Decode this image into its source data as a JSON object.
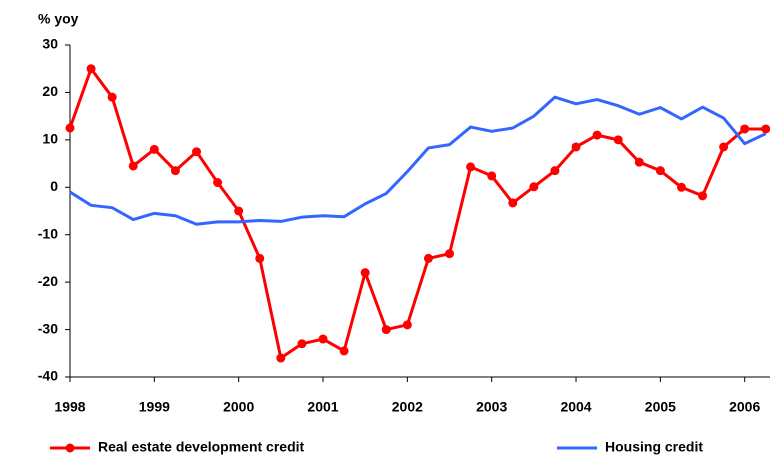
{
  "chart_data": {
    "type": "line",
    "y_label": "%  yoy",
    "x": [
      1998,
      1998.25,
      1998.5,
      1998.75,
      1999,
      1999.25,
      1999.5,
      1999.75,
      2000,
      2000.25,
      2000.5,
      2000.75,
      2001,
      2001.25,
      2001.5,
      2001.75,
      2002,
      2002.25,
      2002.5,
      2002.75,
      2003,
      2003.25,
      2003.5,
      2003.75,
      2004,
      2004.25,
      2004.5,
      2004.75,
      2005,
      2005.25,
      2005.5,
      2005.75,
      2006,
      2006.25
    ],
    "series": [
      {
        "name": "Real estate development credit",
        "color": "#ff0000",
        "markers": true,
        "values": [
          12.5,
          25,
          19,
          4.5,
          8,
          3.5,
          7.5,
          1,
          -5,
          -15,
          -36,
          -33,
          -32,
          -34.5,
          -18,
          -30,
          -29,
          -15,
          -14,
          4.3,
          2.4,
          -3.3,
          0.1,
          3.5,
          8.5,
          11,
          10,
          5.3,
          3.5,
          0,
          -1.8,
          8.5,
          12.3,
          12.3
        ]
      },
      {
        "name": "Housing credit",
        "color": "#3366ff",
        "markers": false,
        "values": [
          -1,
          -3.8,
          -4.3,
          -6.8,
          -5.5,
          -6,
          -7.8,
          -7.3,
          -7.3,
          -7,
          -7.2,
          -6.3,
          -6,
          -6.2,
          -3.5,
          -1.3,
          3.3,
          8.3,
          9,
          12.7,
          11.8,
          12.5,
          15,
          19,
          17.6,
          18.5,
          17.2,
          15.4,
          16.8,
          14.4,
          16.9,
          14.6,
          9.2,
          11.3
        ]
      }
    ],
    "xlim": [
      1998,
      2006.3
    ],
    "xticks": [
      1998,
      1999,
      2000,
      2001,
      2002,
      2003,
      2004,
      2005,
      2006
    ],
    "ylim": [
      -40,
      30
    ],
    "yticks": [
      -40,
      -30,
      -20,
      -10,
      0,
      10,
      20,
      30
    ],
    "grid": false,
    "legend": "bottom"
  }
}
